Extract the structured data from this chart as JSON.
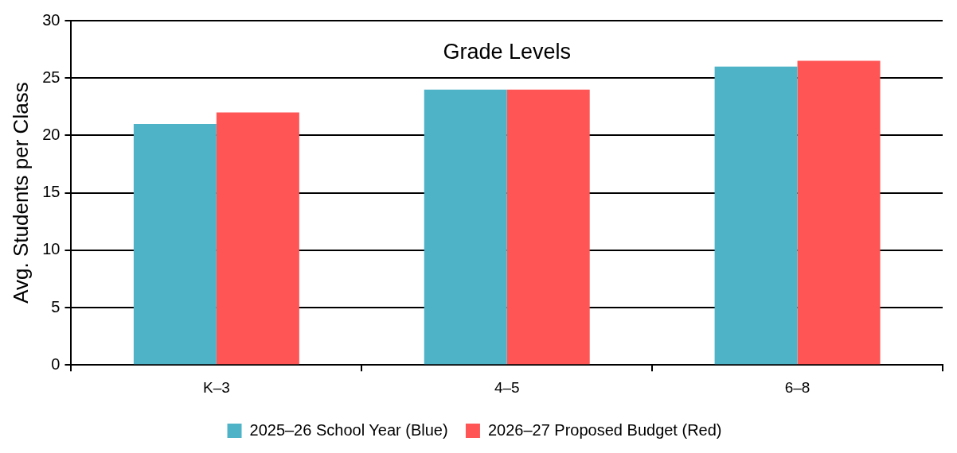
{
  "chart_data": {
    "type": "bar",
    "title": "Grade Levels",
    "ylabel": "Avg. Students per Class",
    "categories": [
      "K–3",
      "4–5",
      "6–8"
    ],
    "series": [
      {
        "name": "2025–26 School Year (Blue)",
        "color": "#4fb3c8",
        "values": [
          21,
          24,
          26
        ]
      },
      {
        "name": "2026–27 Proposed Budget (Red)",
        "color": "#ff5555",
        "values": [
          22,
          24,
          26.5
        ]
      }
    ],
    "ylim": [
      0,
      30
    ],
    "yticks": [
      0,
      5,
      10,
      15,
      20,
      25,
      30
    ],
    "grid": "y",
    "legend": "bottom"
  }
}
